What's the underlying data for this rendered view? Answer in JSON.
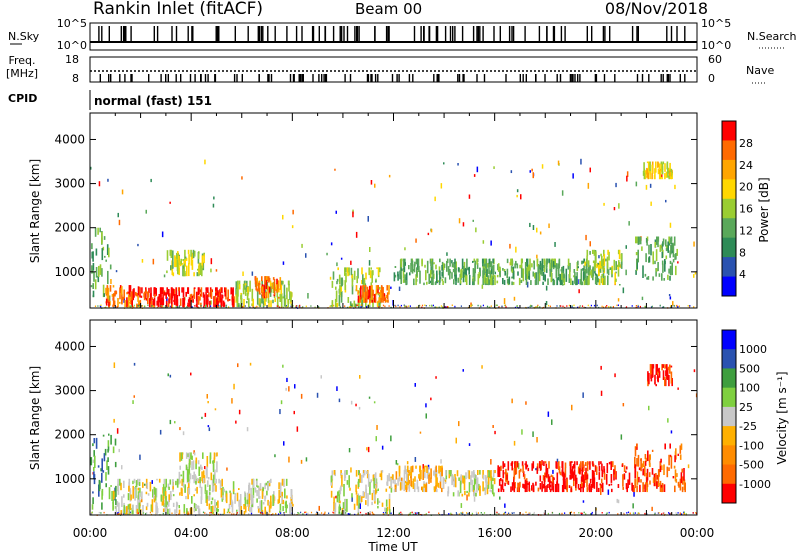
{
  "header": {
    "station": "Rankin Inlet (fitACF)",
    "beam": "Beam 00",
    "date": "08/Nov/2018"
  },
  "status_panels": {
    "nsky_label": "N.Sky",
    "nsky_ticks": [
      "10^5",
      "10^0"
    ],
    "nsearch_label": "N.Search",
    "nsearch_ticks": [
      "10^5",
      "10^0"
    ],
    "freq_label": "Freq.",
    "freq_unit": "[MHz]",
    "freq_ticks": [
      "18",
      "8"
    ],
    "nave_label": "Nave",
    "nave_ticks": [
      "60",
      "0"
    ],
    "cpid_label": "CPID",
    "cpid_value": "normal (fast) 151"
  },
  "colors": {
    "power": [
      "#0000ff",
      "#2a52b0",
      "#2e8b57",
      "#5aa85a",
      "#9acd32",
      "#ffd700",
      "#ffa500",
      "#ff6a00",
      "#ff0000"
    ],
    "velocity": [
      "#ff0000",
      "#ff6a00",
      "#ff8c00",
      "#ffb000",
      "#c8c8c8",
      "#7fd040",
      "#3e9e3e",
      "#2a52b0",
      "#0000ff"
    ]
  },
  "chart_data": [
    {
      "type": "heatmap",
      "name": "power",
      "ylabel": "Slant Range [km]",
      "xlabel": "Time UT",
      "x_ticks": [
        "00:00",
        "04:00",
        "08:00",
        "12:00",
        "16:00",
        "20:00",
        "00:00"
      ],
      "xlim_hours": [
        0,
        24
      ],
      "y_ticks": [
        1000,
        2000,
        3000,
        4000
      ],
      "ylim": [
        180,
        4600
      ],
      "colorbar_label": "Power [dB]",
      "colorbar_ticks": [
        "28",
        "24",
        "20",
        "16",
        "12",
        "8",
        "4"
      ],
      "colorbar_range": [
        0,
        32
      ],
      "clusters": [
        {
          "t": [
            0.0,
            0.8
          ],
          "r": [
            300,
            2000
          ],
          "level": 4
        },
        {
          "t": [
            0.6,
            2.0
          ],
          "r": [
            200,
            700
          ],
          "level": 8
        },
        {
          "t": [
            2.0,
            5.7
          ],
          "r": [
            200,
            650
          ],
          "level": 9
        },
        {
          "t": [
            3.0,
            4.5
          ],
          "r": [
            900,
            1500
          ],
          "level": 5
        },
        {
          "t": [
            5.7,
            8.0
          ],
          "r": [
            200,
            800
          ],
          "level": 5
        },
        {
          "t": [
            6.5,
            7.5
          ],
          "r": [
            400,
            900
          ],
          "level": 8
        },
        {
          "t": [
            9.5,
            11.5
          ],
          "r": [
            200,
            1100
          ],
          "level": 5
        },
        {
          "t": [
            10.5,
            11.8
          ],
          "r": [
            300,
            700
          ],
          "level": 8
        },
        {
          "t": [
            12.0,
            16.0
          ],
          "r": [
            700,
            1300
          ],
          "level": 4
        },
        {
          "t": [
            15.5,
            20.5
          ],
          "r": [
            700,
            1300
          ],
          "level": 4
        },
        {
          "t": [
            19.5,
            21.0
          ],
          "r": [
            700,
            1500
          ],
          "level": 5
        },
        {
          "t": [
            21.5,
            23.2
          ],
          "r": [
            800,
            1800
          ],
          "level": 4
        },
        {
          "t": [
            21.8,
            23.0
          ],
          "r": [
            3100,
            3500
          ],
          "level": 6
        }
      ]
    },
    {
      "type": "heatmap",
      "name": "velocity",
      "ylabel": "Slant Range [km]",
      "xlabel": "Time UT",
      "x_ticks": [
        "00:00",
        "04:00",
        "08:00",
        "12:00",
        "16:00",
        "20:00",
        "00:00"
      ],
      "xlim_hours": [
        0,
        24
      ],
      "y_ticks": [
        1000,
        2000,
        3000,
        4000
      ],
      "ylim": [
        180,
        4600
      ],
      "colorbar_label": "Velocity [m s⁻¹]",
      "colorbar_ticks": [
        "1000",
        "500",
        "100",
        "25",
        "-25",
        "-100",
        "-500",
        "-1000"
      ],
      "clusters": [
        {
          "t": [
            0.0,
            1.0
          ],
          "r": [
            300,
            2000
          ],
          "level": 7
        },
        {
          "t": [
            0.8,
            8.0
          ],
          "r": [
            200,
            1000
          ],
          "level": 5
        },
        {
          "t": [
            3.5,
            5.0
          ],
          "r": [
            900,
            1600
          ],
          "level": 5
        },
        {
          "t": [
            9.5,
            12.0
          ],
          "r": [
            200,
            1200
          ],
          "level": 5
        },
        {
          "t": [
            12.0,
            14.0
          ],
          "r": [
            700,
            1300
          ],
          "level": 4
        },
        {
          "t": [
            14.0,
            16.0
          ],
          "r": [
            600,
            1200
          ],
          "level": 5
        },
        {
          "t": [
            16.0,
            21.5
          ],
          "r": [
            700,
            1400
          ],
          "level": 1
        },
        {
          "t": [
            21.5,
            23.5
          ],
          "r": [
            700,
            1800
          ],
          "level": 2
        },
        {
          "t": [
            22.0,
            23.0
          ],
          "r": [
            3100,
            3600
          ],
          "level": 1
        }
      ]
    }
  ]
}
